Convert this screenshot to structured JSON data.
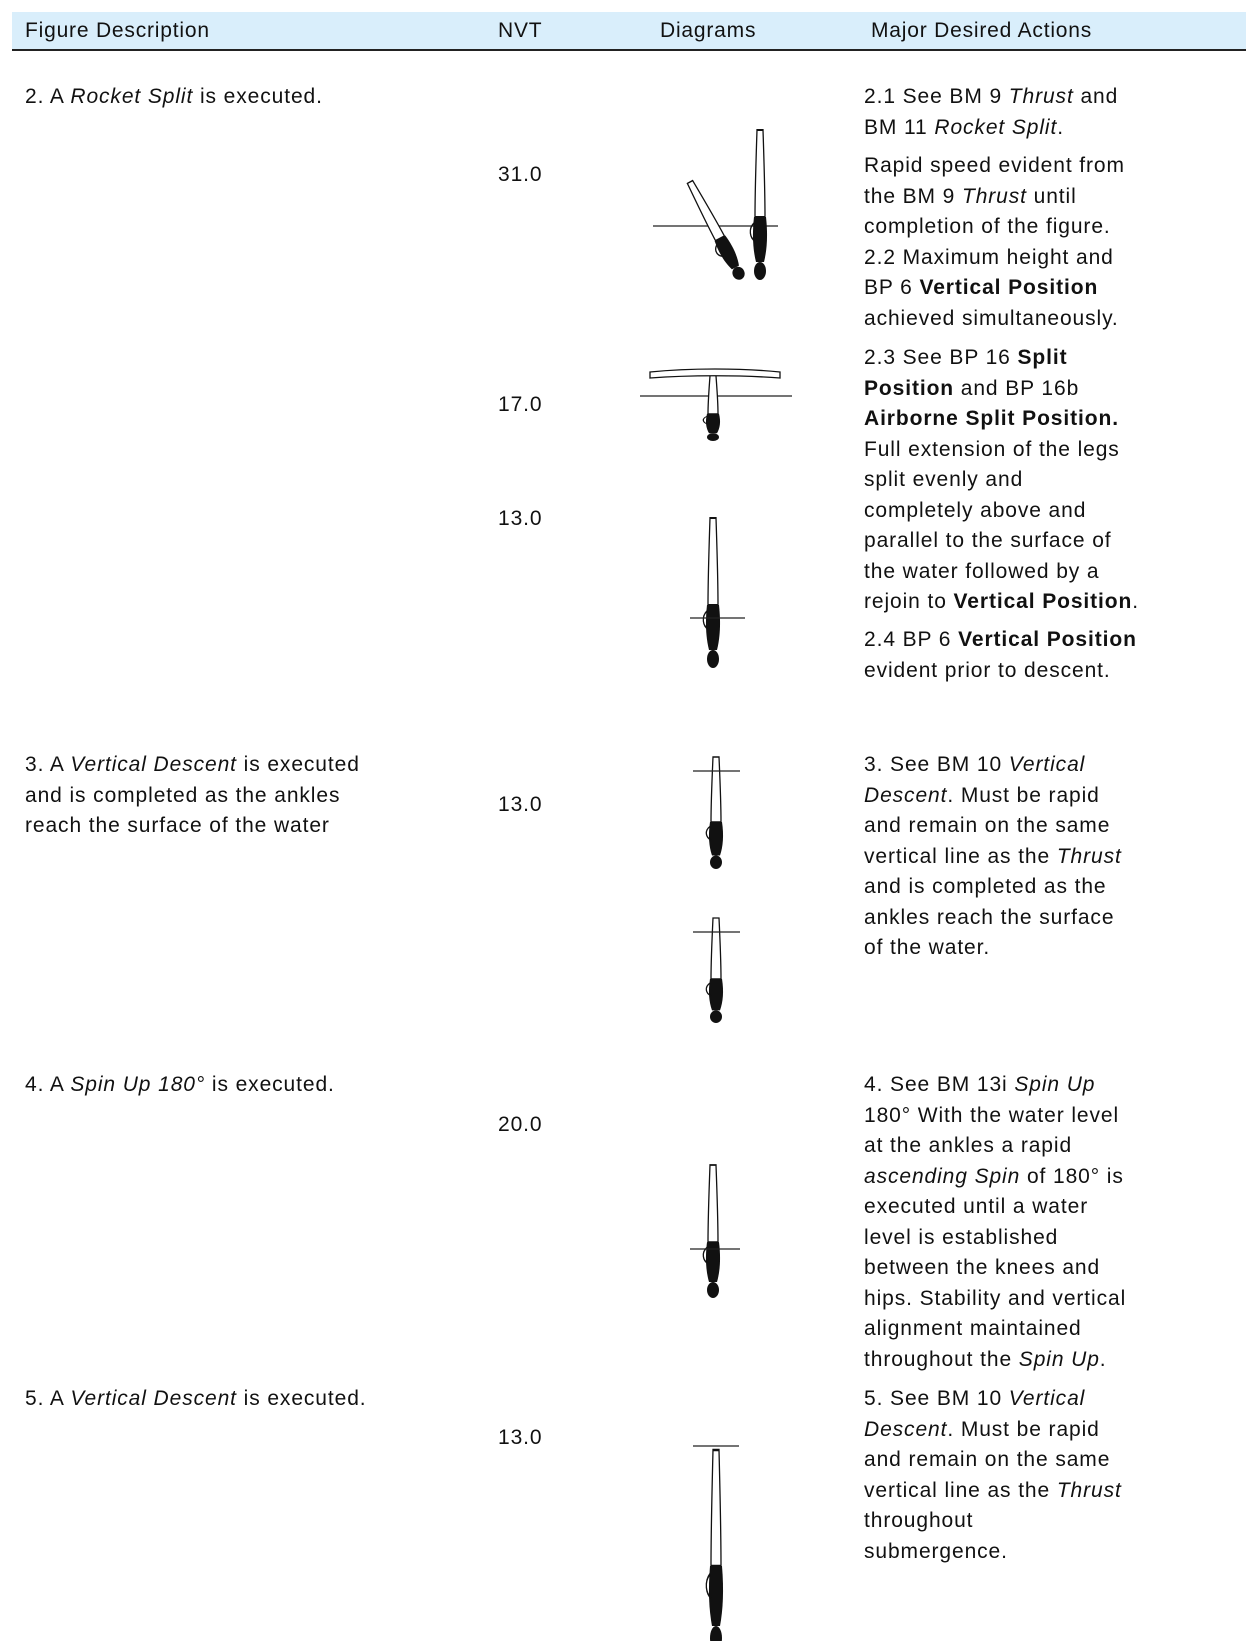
{
  "header": [
    "Figure Description",
    "NVT",
    "Diagrams",
    "Major Desired Actions"
  ],
  "rows": [
    {
      "description": [
        [
          "2. A ",
          {
            "i": "Rocket Split"
          },
          " is executed."
        ]
      ],
      "nvt": [
        "31.0",
        "17.0",
        "13.0"
      ],
      "actions": [
        [
          [
            "2.1 See BM 9 ",
            {
              "i": "Thrust"
            },
            " and"
          ],
          [
            "BM 11 ",
            {
              "i": "Rocket Split"
            },
            "."
          ]
        ],
        [
          [
            "Rapid speed evident from"
          ],
          [
            "the BM 9 ",
            {
              "i": "Thrust"
            },
            " until"
          ],
          [
            "completion of the figure."
          ],
          [
            "2.2 Maximum height and"
          ],
          [
            "BP 6 ",
            {
              "b": "Vertical Position"
            }
          ],
          [
            "achieved simultaneously."
          ]
        ],
        [
          [
            "2.3 See BP 16 ",
            {
              "b": "Split"
            }
          ],
          [
            {
              "b": "Position"
            },
            " and BP 16b"
          ],
          [
            {
              "b": "Airborne Split Position."
            }
          ],
          [
            "Full extension of the legs"
          ],
          [
            "split evenly and"
          ],
          [
            "completely above and"
          ],
          [
            "parallel to the surface of"
          ],
          [
            "the water followed by a"
          ],
          [
            "rejoin to ",
            {
              "b": "Vertical Position"
            },
            "."
          ]
        ],
        [
          [
            "2.4 BP 6 ",
            {
              "b": "Vertical Position"
            }
          ],
          [
            "evident prior to descent."
          ]
        ]
      ]
    },
    {
      "description": [
        [
          "3. A ",
          {
            "i": "Vertical Descent"
          },
          " is executed"
        ],
        [
          "and is completed as the ankles"
        ],
        [
          "reach the surface of the water"
        ]
      ],
      "nvt": [
        "13.0"
      ],
      "actions": [
        [
          [
            "3. See BM 10 ",
            {
              "i": "Vertical"
            }
          ],
          [
            {
              "i": "Descent"
            },
            ". Must be rapid"
          ],
          [
            "and remain on the same"
          ],
          [
            "vertical line as the ",
            {
              "i": "Thrust"
            }
          ],
          [
            "and is completed as the"
          ],
          [
            "ankles reach the surface"
          ],
          [
            "of the water."
          ]
        ]
      ]
    },
    {
      "description": [
        [
          "4. A ",
          {
            "i": "Spin Up 180°"
          },
          " is executed."
        ]
      ],
      "nvt": [
        "20.0"
      ],
      "actions": [
        [
          [
            "4. See BM 13i ",
            {
              "i": "Spin Up"
            }
          ],
          [
            "180° With the water level"
          ],
          [
            "at the ankles a rapid"
          ],
          [
            {
              "i": "ascending Spin"
            },
            " of 180° is"
          ],
          [
            "executed until a water"
          ],
          [
            "level is established"
          ],
          [
            "between the knees and"
          ],
          [
            "hips. Stability and vertical"
          ],
          [
            "alignment maintained"
          ],
          [
            "throughout the ",
            {
              "i": "Spin Up"
            },
            "."
          ]
        ]
      ]
    },
    {
      "description": [
        [
          "5. A ",
          {
            "i": "Vertical Descent"
          },
          " is executed."
        ]
      ],
      "nvt": [
        "13.0"
      ],
      "actions": [
        [
          [
            "5. See BM 10 ",
            {
              "i": "Vertical"
            }
          ],
          [
            {
              "i": "Descent"
            },
            ". Must be rapid"
          ],
          [
            "and remain on the same"
          ],
          [
            "vertical line as the ",
            {
              "i": "Thrust"
            }
          ],
          [
            "throughout"
          ],
          [
            "submergence."
          ]
        ]
      ]
    }
  ]
}
